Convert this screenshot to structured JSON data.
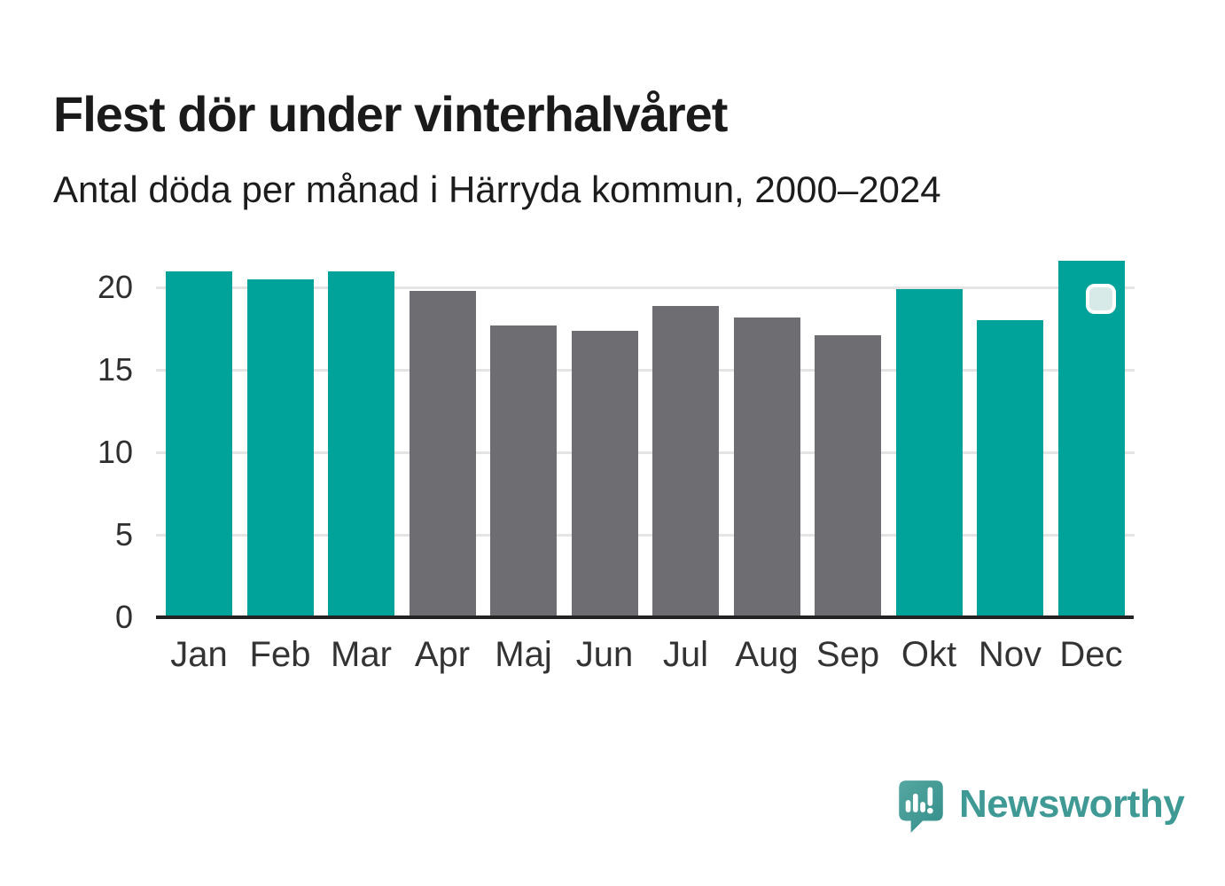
{
  "header": {
    "title": "Flest dör under vinterhalvåret",
    "subtitle": "Antal döda per månad i Härryda kommun, 2000–2024"
  },
  "branding": {
    "label": "Newsworthy",
    "text_color": "#3f9a95",
    "icon": "speech-bubble-bar-chart-icon",
    "icon_color": "#4a9f9b"
  },
  "chart_data": {
    "type": "bar",
    "title": "Flest dör under vinterhalvåret",
    "subtitle": "Antal döda per månad i Härryda kommun, 2000–2024",
    "categories": [
      "Jan",
      "Feb",
      "Mar",
      "Apr",
      "Maj",
      "Jun",
      "Jul",
      "Aug",
      "Sep",
      "Okt",
      "Nov",
      "Dec"
    ],
    "values": [
      21.0,
      20.5,
      21.0,
      19.8,
      17.7,
      17.4,
      18.9,
      18.2,
      17.1,
      19.9,
      18.0,
      21.6
    ],
    "highlighted": [
      true,
      true,
      true,
      false,
      false,
      false,
      false,
      false,
      false,
      true,
      true,
      true
    ],
    "highlight_color": "#00a39a",
    "base_color": "#6e6d72",
    "xlabel": "",
    "ylabel": "",
    "yticks": [
      0,
      5,
      10,
      15,
      20
    ],
    "ylim": [
      0,
      22
    ],
    "grid": true,
    "legend": "none",
    "marker": {
      "category": "Dec",
      "shape": "rounded-square",
      "fill": "#d8eae7",
      "border": "#ffffff"
    }
  }
}
